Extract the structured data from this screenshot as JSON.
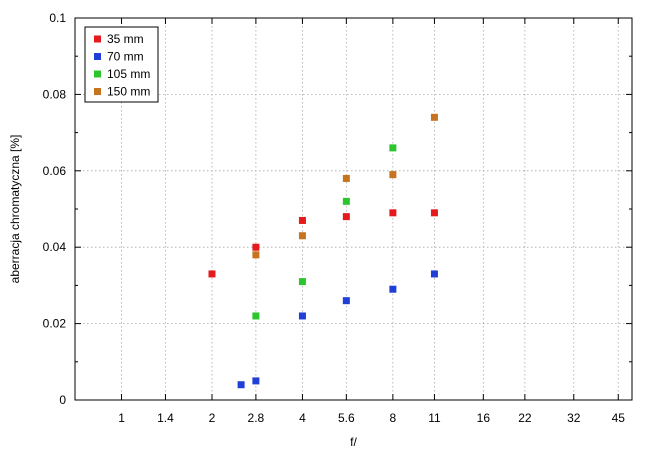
{
  "chart_data": {
    "type": "scatter",
    "title": "",
    "xlabel": "f/",
    "ylabel": "aberracja chromatyczna [%]",
    "x_scale": "log2 (f-stop sequence)",
    "x_ticks": [
      "1",
      "1.4",
      "2",
      "2.8",
      "4",
      "5.6",
      "8",
      "11",
      "16",
      "22",
      "32",
      "45"
    ],
    "x_tick_values": [
      1,
      1.4,
      2,
      2.8,
      4,
      5.6,
      8,
      11,
      16,
      22,
      32,
      45
    ],
    "xlim": [
      0.7,
      50
    ],
    "y_ticks": [
      "0",
      "0.02",
      "0.04",
      "0.06",
      "0.08",
      "0.1"
    ],
    "y_tick_values": [
      0,
      0.02,
      0.04,
      0.06,
      0.08,
      0.1
    ],
    "ylim": [
      0,
      0.1
    ],
    "grid": true,
    "legend_position": "top-left",
    "series": [
      {
        "name": "35 mm",
        "color": "#e41a1c",
        "points": [
          {
            "x": 2,
            "y": 0.033
          },
          {
            "x": 2.8,
            "y": 0.04
          },
          {
            "x": 4,
            "y": 0.047
          },
          {
            "x": 5.6,
            "y": 0.048
          },
          {
            "x": 8,
            "y": 0.049
          },
          {
            "x": 11,
            "y": 0.049
          }
        ]
      },
      {
        "name": "70 mm",
        "color": "#1f3fd6",
        "points": [
          {
            "x": 2.5,
            "y": 0.004
          },
          {
            "x": 2.8,
            "y": 0.005
          },
          {
            "x": 4,
            "y": 0.022
          },
          {
            "x": 5.6,
            "y": 0.026
          },
          {
            "x": 8,
            "y": 0.029
          },
          {
            "x": 11,
            "y": 0.033
          }
        ]
      },
      {
        "name": "105 mm",
        "color": "#2dc52d",
        "points": [
          {
            "x": 2.8,
            "y": 0.022
          },
          {
            "x": 4,
            "y": 0.031
          },
          {
            "x": 5.6,
            "y": 0.052
          },
          {
            "x": 8,
            "y": 0.066
          }
        ]
      },
      {
        "name": "150 mm",
        "color": "#c8731e",
        "points": [
          {
            "x": 2.8,
            "y": 0.038
          },
          {
            "x": 4,
            "y": 0.043
          },
          {
            "x": 5.6,
            "y": 0.058
          },
          {
            "x": 8,
            "y": 0.059
          },
          {
            "x": 11,
            "y": 0.074
          }
        ]
      }
    ]
  }
}
